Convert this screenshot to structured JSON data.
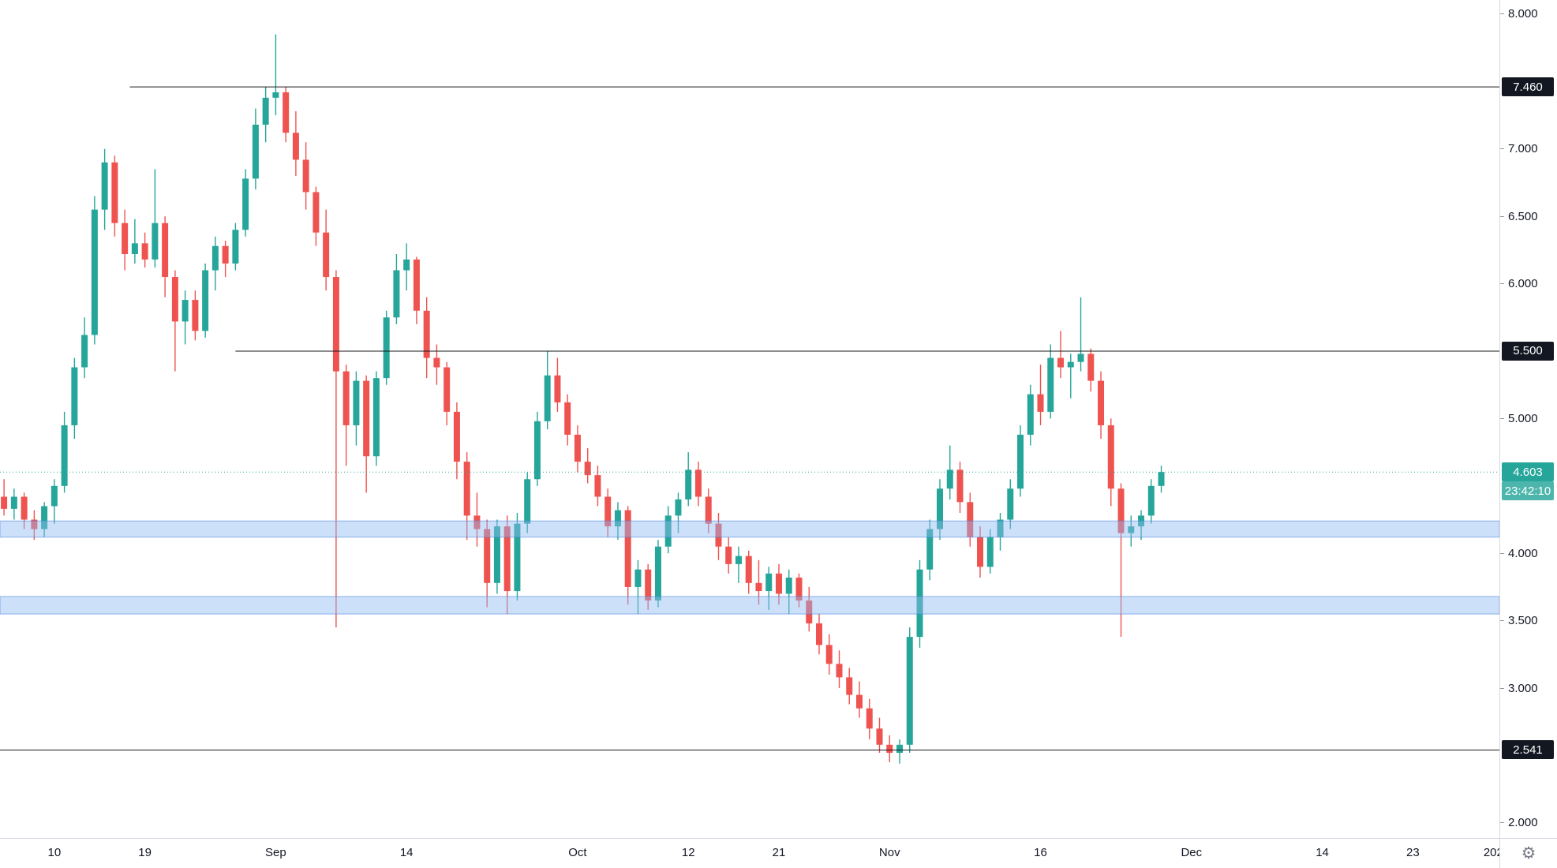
{
  "chart_data": {
    "type": "candlestick",
    "title": "",
    "ylim": [
      1.888,
      8.105
    ],
    "xlim_days": [
      -0.4,
      148.6
    ],
    "grid": "off",
    "legend_position": "none",
    "price_ticks": [
      {
        "label": "8.000",
        "price": 8.0
      },
      {
        "label": "7.000",
        "price": 7.0
      },
      {
        "label": "6.500",
        "price": 6.5
      },
      {
        "label": "6.000",
        "price": 6.0
      },
      {
        "label": "5.000",
        "price": 5.0
      },
      {
        "label": "4.000",
        "price": 4.0
      },
      {
        "label": "3.500",
        "price": 3.5
      },
      {
        "label": "3.000",
        "price": 3.0
      },
      {
        "label": "2.000",
        "price": 2.0
      }
    ],
    "time_ticks": [
      {
        "label": "10",
        "day": 5
      },
      {
        "label": "19",
        "day": 14
      },
      {
        "label": "Sep",
        "day": 27
      },
      {
        "label": "14",
        "day": 40
      },
      {
        "label": "Oct",
        "day": 57
      },
      {
        "label": "12",
        "day": 68
      },
      {
        "label": "21",
        "day": 77
      },
      {
        "label": "Nov",
        "day": 88
      },
      {
        "label": "16",
        "day": 103
      },
      {
        "label": "Dec",
        "day": 118
      },
      {
        "label": "14",
        "day": 131
      },
      {
        "label": "23",
        "day": 140
      },
      {
        "label": "202",
        "day": 148
      }
    ],
    "levels": [
      {
        "label": "7.460",
        "price": 7.46,
        "start_day": 12.5
      },
      {
        "label": "5.500",
        "price": 5.5,
        "start_day": 23.0
      },
      {
        "label": "2.541",
        "price": 2.541,
        "start_day": -0.4
      }
    ],
    "zones": [
      {
        "top": 4.24,
        "bottom": 4.12
      },
      {
        "top": 3.68,
        "bottom": 3.55
      }
    ],
    "last_price": {
      "label": "4.603",
      "price": 4.603,
      "countdown": "23:42:10",
      "direction": "up"
    },
    "candles": [
      [
        "Aug 5",
        4.42,
        4.55,
        4.28,
        4.33
      ],
      [
        "Aug 6",
        4.33,
        4.48,
        4.25,
        4.42
      ],
      [
        "Aug 7",
        4.42,
        4.45,
        4.18,
        4.25
      ],
      [
        "Aug 8",
        4.25,
        4.32,
        4.1,
        4.18
      ],
      [
        "Aug 9",
        4.18,
        4.38,
        4.12,
        4.35
      ],
      [
        "Aug 10",
        4.35,
        4.55,
        4.22,
        4.5
      ],
      [
        "Aug 11",
        4.5,
        5.05,
        4.45,
        4.95
      ],
      [
        "Aug 12",
        4.95,
        5.45,
        4.85,
        5.38
      ],
      [
        "Aug 13",
        5.38,
        5.75,
        5.3,
        5.62
      ],
      [
        "Aug 14",
        5.62,
        6.65,
        5.55,
        6.55
      ],
      [
        "Aug 15",
        6.55,
        7.0,
        6.4,
        6.9
      ],
      [
        "Aug 16",
        6.9,
        6.95,
        6.35,
        6.45
      ],
      [
        "Aug 17",
        6.45,
        6.55,
        6.1,
        6.22
      ],
      [
        "Aug 18",
        6.22,
        6.48,
        6.15,
        6.3
      ],
      [
        "Aug 19",
        6.3,
        6.38,
        6.12,
        6.18
      ],
      [
        "Aug 20",
        6.18,
        6.85,
        6.12,
        6.45
      ],
      [
        "Aug 21",
        6.45,
        6.5,
        5.9,
        6.05
      ],
      [
        "Aug 22",
        6.05,
        6.1,
        5.35,
        5.72
      ],
      [
        "Aug 23",
        5.72,
        5.95,
        5.55,
        5.88
      ],
      [
        "Aug 24",
        5.88,
        5.95,
        5.58,
        5.65
      ],
      [
        "Aug 25",
        5.65,
        6.15,
        5.6,
        6.1
      ],
      [
        "Aug 26",
        6.1,
        6.35,
        5.95,
        6.28
      ],
      [
        "Aug 27",
        6.28,
        6.32,
        6.05,
        6.15
      ],
      [
        "Aug 28",
        6.15,
        6.45,
        6.1,
        6.4
      ],
      [
        "Aug 29",
        6.4,
        6.85,
        6.35,
        6.78
      ],
      [
        "Aug 30",
        6.78,
        7.3,
        6.7,
        7.18
      ],
      [
        "Aug 31",
        7.18,
        7.46,
        7.05,
        7.38
      ],
      [
        "Sep 1",
        7.38,
        7.85,
        7.25,
        7.42
      ],
      [
        "Sep 2",
        7.42,
        7.46,
        7.05,
        7.12
      ],
      [
        "Sep 3",
        7.12,
        7.28,
        6.8,
        6.92
      ],
      [
        "Sep 4",
        6.92,
        7.05,
        6.55,
        6.68
      ],
      [
        "Sep 5",
        6.68,
        6.72,
        6.28,
        6.38
      ],
      [
        "Sep 6",
        6.38,
        6.55,
        5.95,
        6.05
      ],
      [
        "Sep 7",
        6.05,
        6.1,
        3.45,
        5.35
      ],
      [
        "Sep 8",
        5.35,
        5.4,
        4.65,
        4.95
      ],
      [
        "Sep 9",
        4.95,
        5.35,
        4.8,
        5.28
      ],
      [
        "Sep 10",
        5.28,
        5.32,
        4.45,
        4.72
      ],
      [
        "Sep 11",
        4.72,
        5.35,
        4.65,
        5.3
      ],
      [
        "Sep 12",
        5.3,
        5.8,
        5.25,
        5.75
      ],
      [
        "Sep 13",
        5.75,
        6.22,
        5.7,
        6.1
      ],
      [
        "Sep 14",
        6.1,
        6.3,
        5.95,
        6.18
      ],
      [
        "Sep 15",
        6.18,
        6.2,
        5.7,
        5.8
      ],
      [
        "Sep 16",
        5.8,
        5.9,
        5.3,
        5.45
      ],
      [
        "Sep 17",
        5.45,
        5.55,
        5.25,
        5.38
      ],
      [
        "Sep 18",
        5.38,
        5.42,
        4.95,
        5.05
      ],
      [
        "Sep 19",
        5.05,
        5.12,
        4.55,
        4.68
      ],
      [
        "Sep 20",
        4.68,
        4.75,
        4.1,
        4.28
      ],
      [
        "Sep 21",
        4.28,
        4.45,
        4.05,
        4.18
      ],
      [
        "Sep 22",
        4.18,
        4.25,
        3.6,
        3.78
      ],
      [
        "Sep 23",
        3.78,
        4.25,
        3.7,
        4.2
      ],
      [
        "Sep 24",
        4.2,
        4.28,
        3.55,
        3.72
      ],
      [
        "Sep 25",
        3.72,
        4.3,
        3.65,
        4.22
      ],
      [
        "Sep 26",
        4.22,
        4.6,
        4.15,
        4.55
      ],
      [
        "Sep 27",
        4.55,
        5.05,
        4.5,
        4.98
      ],
      [
        "Sep 28",
        4.98,
        5.5,
        4.92,
        5.32
      ],
      [
        "Sep 29",
        5.32,
        5.45,
        5.05,
        5.12
      ],
      [
        "Sep 30",
        5.12,
        5.18,
        4.8,
        4.88
      ],
      [
        "Oct 1",
        4.88,
        4.95,
        4.6,
        4.68
      ],
      [
        "Oct 2",
        4.68,
        4.78,
        4.52,
        4.58
      ],
      [
        "Oct 3",
        4.58,
        4.65,
        4.35,
        4.42
      ],
      [
        "Oct 4",
        4.42,
        4.48,
        4.12,
        4.2
      ],
      [
        "Oct 5",
        4.2,
        4.38,
        4.1,
        4.32
      ],
      [
        "Oct 6",
        4.32,
        4.35,
        3.62,
        3.75
      ],
      [
        "Oct 7",
        3.75,
        3.95,
        3.55,
        3.88
      ],
      [
        "Oct 8",
        3.88,
        3.92,
        3.58,
        3.65
      ],
      [
        "Oct 9",
        3.65,
        4.1,
        3.6,
        4.05
      ],
      [
        "Oct 10",
        4.05,
        4.35,
        4.0,
        4.28
      ],
      [
        "Oct 11",
        4.28,
        4.45,
        4.15,
        4.4
      ],
      [
        "Oct 12",
        4.4,
        4.75,
        4.35,
        4.62
      ],
      [
        "Oct 13",
        4.62,
        4.68,
        4.35,
        4.42
      ],
      [
        "Oct 14",
        4.42,
        4.48,
        4.15,
        4.22
      ],
      [
        "Oct 15",
        4.22,
        4.3,
        3.95,
        4.05
      ],
      [
        "Oct 16",
        4.05,
        4.12,
        3.85,
        3.92
      ],
      [
        "Oct 17",
        3.92,
        4.05,
        3.78,
        3.98
      ],
      [
        "Oct 18",
        3.98,
        4.02,
        3.7,
        3.78
      ],
      [
        "Oct 19",
        3.78,
        3.95,
        3.62,
        3.72
      ],
      [
        "Oct 20",
        3.72,
        3.9,
        3.58,
        3.85
      ],
      [
        "Oct 21",
        3.85,
        3.92,
        3.62,
        3.7
      ],
      [
        "Oct 22",
        3.7,
        3.88,
        3.55,
        3.82
      ],
      [
        "Oct 23",
        3.82,
        3.85,
        3.6,
        3.65
      ],
      [
        "Oct 24",
        3.65,
        3.75,
        3.42,
        3.48
      ],
      [
        "Oct 25",
        3.48,
        3.55,
        3.25,
        3.32
      ],
      [
        "Oct 26",
        3.32,
        3.4,
        3.1,
        3.18
      ],
      [
        "Oct 27",
        3.18,
        3.28,
        3.0,
        3.08
      ],
      [
        "Oct 28",
        3.08,
        3.15,
        2.88,
        2.95
      ],
      [
        "Oct 29",
        2.95,
        3.05,
        2.78,
        2.85
      ],
      [
        "Oct 30",
        2.85,
        2.92,
        2.62,
        2.7
      ],
      [
        "Oct 31",
        2.7,
        2.78,
        2.52,
        2.58
      ],
      [
        "Nov 1",
        2.58,
        2.65,
        2.45,
        2.52
      ],
      [
        "Nov 2",
        2.52,
        2.62,
        2.44,
        2.58
      ],
      [
        "Nov 3",
        2.58,
        3.45,
        2.52,
        3.38
      ],
      [
        "Nov 4",
        3.38,
        3.95,
        3.3,
        3.88
      ],
      [
        "Nov 5",
        3.88,
        4.25,
        3.8,
        4.18
      ],
      [
        "Nov 6",
        4.18,
        4.55,
        4.1,
        4.48
      ],
      [
        "Nov 7",
        4.48,
        4.8,
        4.4,
        4.62
      ],
      [
        "Nov 8",
        4.62,
        4.68,
        4.3,
        4.38
      ],
      [
        "Nov 9",
        4.38,
        4.45,
        4.05,
        4.12
      ],
      [
        "Nov 10",
        4.12,
        4.2,
        3.82,
        3.9
      ],
      [
        "Nov 11",
        3.9,
        4.18,
        3.85,
        4.12
      ],
      [
        "Nov 12",
        4.12,
        4.3,
        4.02,
        4.25
      ],
      [
        "Nov 13",
        4.25,
        4.55,
        4.18,
        4.48
      ],
      [
        "Nov 14",
        4.48,
        4.95,
        4.42,
        4.88
      ],
      [
        "Nov 15",
        4.88,
        5.25,
        4.8,
        5.18
      ],
      [
        "Nov 16",
        5.18,
        5.4,
        4.95,
        5.05
      ],
      [
        "Nov 17",
        5.05,
        5.55,
        5.0,
        5.45
      ],
      [
        "Nov 18",
        5.45,
        5.65,
        5.3,
        5.38
      ],
      [
        "Nov 19",
        5.38,
        5.48,
        5.15,
        5.42
      ],
      [
        "Nov 20",
        5.42,
        5.9,
        5.35,
        5.48
      ],
      [
        "Nov 21",
        5.48,
        5.52,
        5.2,
        5.28
      ],
      [
        "Nov 22",
        5.28,
        5.35,
        4.85,
        4.95
      ],
      [
        "Nov 23",
        4.95,
        5.0,
        4.35,
        4.48
      ],
      [
        "Nov 24",
        4.48,
        4.52,
        3.38,
        4.15
      ],
      [
        "Nov 25",
        4.15,
        4.28,
        4.05,
        4.2
      ],
      [
        "Nov 26",
        4.2,
        4.32,
        4.1,
        4.28
      ],
      [
        "Nov 27",
        4.28,
        4.55,
        4.22,
        4.5
      ],
      [
        "Nov 28",
        4.5,
        4.65,
        4.45,
        4.603
      ]
    ]
  },
  "colors": {
    "up": "#26a69a",
    "down": "#ef5350",
    "last_badge": "#26a69a",
    "countdown_badge": "#4db6ac",
    "level_badge": "#131722",
    "level_line": "#17181b",
    "zone_fill": "rgba(144,187,242,0.45)",
    "zone_border": "rgba(73,133,222,0.60)",
    "price_line": "#26a69a",
    "axis_text": "#131722",
    "axis_border": "#d6d9e0",
    "tick_mark": "#9598a1",
    "gear": "#787b86"
  },
  "icons": {
    "gear": "⚙"
  }
}
